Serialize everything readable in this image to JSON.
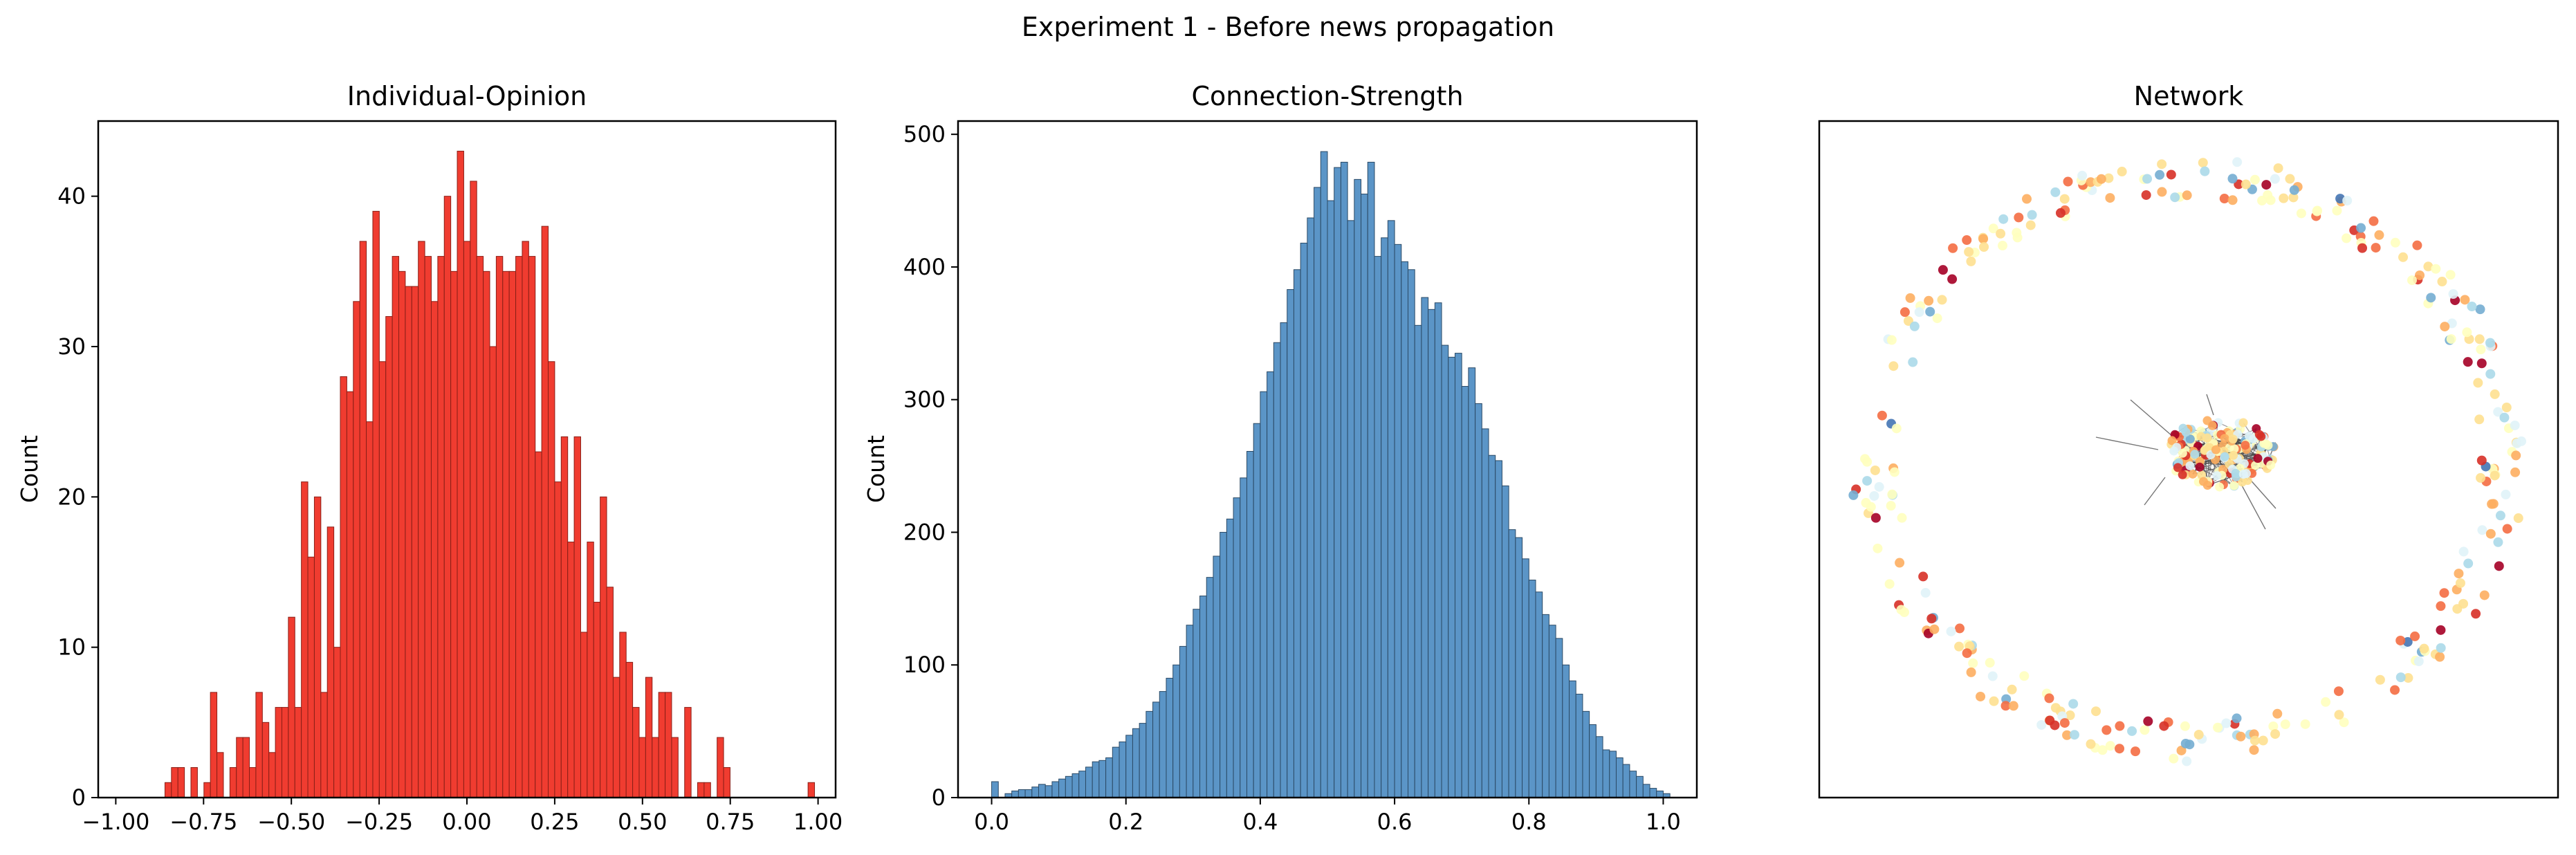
{
  "figure": {
    "suptitle": "Experiment 1 - Before news propagation"
  },
  "chart_data": [
    {
      "type": "bar",
      "title": "Individual-Opinion",
      "xlabel": "",
      "ylabel": "Count",
      "xlim": [
        -1.05,
        1.05
      ],
      "ylim": [
        0,
        45
      ],
      "xticks": [
        "−1.00",
        "−0.75",
        "−0.50",
        "−0.25",
        "0.00",
        "0.25",
        "0.50",
        "0.75",
        "1.00"
      ],
      "xtick_values": [
        -1.0,
        -0.75,
        -0.5,
        -0.25,
        0.0,
        0.25,
        0.5,
        0.75,
        1.0
      ],
      "yticks": [
        "0",
        "10",
        "20",
        "30",
        "40"
      ],
      "ytick_values": [
        0,
        10,
        20,
        30,
        40
      ],
      "bin_start": -0.86,
      "bin_width": 0.0185,
      "bar_color": "#f03c30",
      "edge_color": "#8a1f17",
      "values": [
        1,
        2,
        2,
        0,
        2,
        0,
        1,
        7,
        3,
        0,
        2,
        4,
        4,
        2,
        7,
        5,
        3,
        6,
        6,
        12,
        6,
        21,
        16,
        20,
        7,
        18,
        10,
        28,
        27,
        33,
        37,
        25,
        39,
        29,
        32,
        36,
        35,
        34,
        34,
        37,
        36,
        33,
        36,
        40,
        35,
        43,
        37,
        41,
        36,
        35,
        30,
        36,
        35,
        35,
        36,
        37,
        36,
        23,
        38,
        29,
        21,
        24,
        17,
        24,
        11,
        17,
        13,
        20,
        14,
        8,
        11,
        9,
        6,
        4,
        8,
        4,
        7,
        7,
        4,
        0,
        6,
        0,
        1,
        1,
        0,
        4,
        2,
        0,
        0,
        0,
        0,
        0,
        0,
        0,
        0,
        0,
        0,
        0,
        0,
        1,
        0
      ]
    },
    {
      "type": "bar",
      "title": "Connection-Strength",
      "xlabel": "",
      "ylabel": "Count",
      "xlim": [
        -0.05,
        1.05
      ],
      "ylim": [
        0,
        510
      ],
      "xticks": [
        "0.0",
        "0.2",
        "0.4",
        "0.6",
        "0.8",
        "1.0"
      ],
      "xtick_values": [
        0.0,
        0.2,
        0.4,
        0.6,
        0.8,
        1.0
      ],
      "yticks": [
        "0",
        "100",
        "200",
        "300",
        "400",
        "500"
      ],
      "ytick_values": [
        0,
        100,
        200,
        300,
        400,
        500
      ],
      "bin_start": 0.0,
      "bin_width": 0.01,
      "bar_color": "#5b95c7",
      "edge_color": "#2b4a66",
      "values": [
        12,
        0,
        3,
        5,
        6,
        6,
        8,
        10,
        9,
        12,
        14,
        16,
        18,
        20,
        23,
        27,
        28,
        30,
        38,
        42,
        47,
        52,
        56,
        65,
        72,
        80,
        90,
        100,
        114,
        130,
        142,
        152,
        166,
        182,
        200,
        210,
        226,
        241,
        261,
        282,
        306,
        321,
        343,
        358,
        383,
        398,
        418,
        437,
        460,
        487,
        450,
        475,
        479,
        435,
        466,
        455,
        479,
        408,
        422,
        435,
        417,
        404,
        398,
        356,
        377,
        368,
        373,
        341,
        332,
        335,
        310,
        324,
        297,
        278,
        258,
        254,
        235,
        202,
        196,
        180,
        164,
        155,
        138,
        130,
        120,
        100,
        88,
        78,
        65,
        55,
        46,
        36,
        35,
        30,
        25,
        20,
        16,
        10,
        7,
        5,
        3
      ]
    },
    {
      "type": "scatter",
      "title": "Network",
      "xlabel": "",
      "ylabel": "",
      "palette": [
        "#a50026",
        "#d73027",
        "#f46d43",
        "#fdae61",
        "#fee090",
        "#ffffbf",
        "#e0f3f8",
        "#abd9e9",
        "#74add1",
        "#4575b4"
      ],
      "edge_color": "#3a3a3a"
    }
  ]
}
